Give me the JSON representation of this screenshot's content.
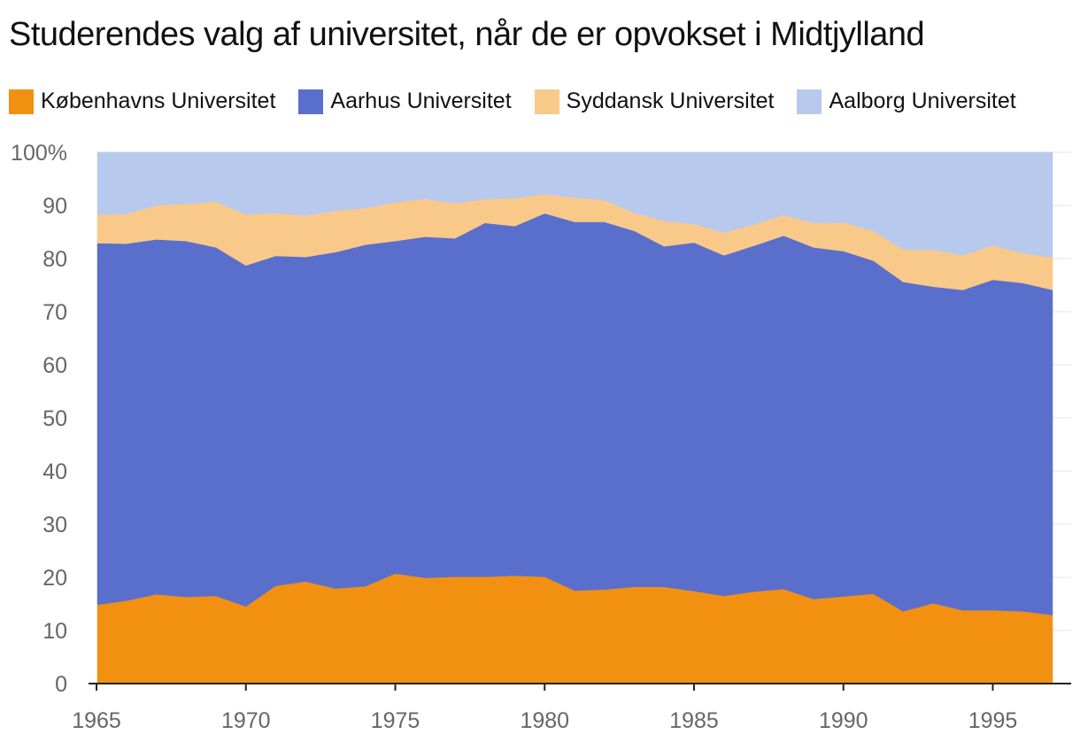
{
  "chart_data": {
    "type": "area",
    "stacked": true,
    "title": "Studerendes valg af universitet, når de er opvokset i Midtjylland",
    "xlabel": "",
    "ylabel": "",
    "ylim": [
      0,
      100
    ],
    "y_ticks": [
      "0",
      "10",
      "20",
      "30",
      "40",
      "50",
      "60",
      "70",
      "80",
      "90",
      "100%"
    ],
    "y_tick_values": [
      0,
      10,
      20,
      30,
      40,
      50,
      60,
      70,
      80,
      90,
      100
    ],
    "x_ticks": [
      "1965",
      "1970",
      "1975",
      "1980",
      "1985",
      "1990",
      "1995"
    ],
    "x_tick_values": [
      1965,
      1970,
      1975,
      1980,
      1985,
      1990,
      1995
    ],
    "x": [
      1965,
      1966,
      1967,
      1968,
      1969,
      1970,
      1971,
      1972,
      1973,
      1974,
      1975,
      1976,
      1977,
      1978,
      1979,
      1980,
      1981,
      1982,
      1983,
      1984,
      1985,
      1986,
      1987,
      1988,
      1989,
      1990,
      1991,
      1992,
      1993,
      1994,
      1995,
      1996,
      1997
    ],
    "grid": true,
    "legend_position": "top-left",
    "series": [
      {
        "name": "Københavns Universitet",
        "color": "#f29111",
        "values": [
          14.8,
          15.6,
          16.8,
          16.3,
          16.5,
          14.5,
          18.4,
          19.2,
          17.9,
          18.3,
          20.7,
          19.9,
          20.1,
          20.1,
          20.3,
          20.1,
          17.5,
          17.7,
          18.2,
          18.2,
          17.4,
          16.5,
          17.3,
          17.8,
          15.9,
          16.4,
          16.9,
          13.6,
          15.1,
          13.8,
          13.8,
          13.6,
          12.9
        ]
      },
      {
        "name": "Aarhus Universitet",
        "color": "#5a6fcc",
        "values": [
          68.1,
          67.2,
          66.8,
          67.0,
          65.6,
          64.2,
          62.1,
          61.1,
          63.3,
          64.3,
          62.6,
          64.2,
          63.7,
          66.6,
          65.8,
          68.4,
          69.4,
          69.2,
          67.0,
          64.1,
          65.6,
          64.1,
          65.1,
          66.5,
          66.2,
          65.0,
          62.7,
          62.0,
          59.6,
          60.3,
          62.2,
          61.8,
          61.2
        ]
      },
      {
        "name": "Syddansk Universitet",
        "color": "#f9c98a",
        "values": [
          5.4,
          5.6,
          6.4,
          7.0,
          8.6,
          9.6,
          8.1,
          7.8,
          7.8,
          6.9,
          7.3,
          7.1,
          6.6,
          4.5,
          5.3,
          3.6,
          4.6,
          4.1,
          3.4,
          4.8,
          3.5,
          4.3,
          4.0,
          3.9,
          4.6,
          5.4,
          5.6,
          6.1,
          6.9,
          6.5,
          6.5,
          5.6,
          6.1
        ]
      },
      {
        "name": "Aalborg Universitet",
        "color": "#b8c9ee",
        "values": [
          11.7,
          11.6,
          10.0,
          9.7,
          9.3,
          11.7,
          11.4,
          11.9,
          11.0,
          10.5,
          9.4,
          8.8,
          9.6,
          8.8,
          8.6,
          7.9,
          8.5,
          9.0,
          11.4,
          12.9,
          13.5,
          15.1,
          13.6,
          11.8,
          13.3,
          13.2,
          14.8,
          18.3,
          18.4,
          19.4,
          17.5,
          19.0,
          19.8
        ]
      }
    ]
  }
}
